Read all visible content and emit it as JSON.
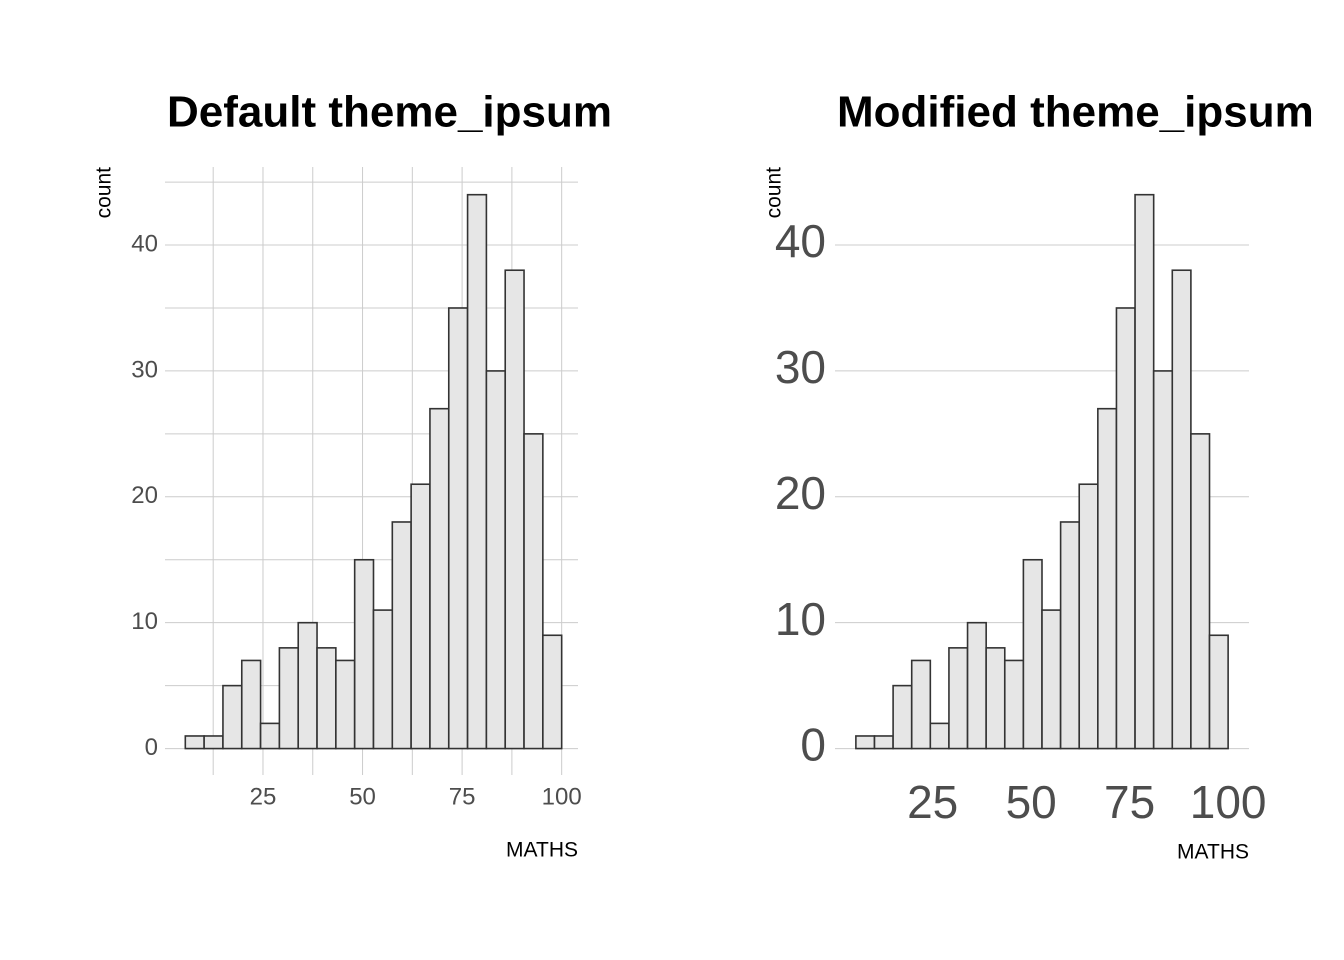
{
  "chart_data": [
    {
      "type": "histogram",
      "title": "Default theme_ipsum",
      "xlabel": "MATHS",
      "ylabel": "count",
      "bins": [
        5.5,
        10.225,
        14.95,
        19.675,
        24.4,
        29.125,
        33.85,
        38.575,
        43.3,
        48.025,
        52.75,
        57.475,
        62.2,
        66.925,
        71.65,
        76.375,
        81.1,
        85.825,
        90.55,
        95.275,
        100
      ],
      "values": [
        1,
        1,
        5,
        7,
        2,
        8,
        10,
        8,
        7,
        15,
        11,
        18,
        21,
        27,
        35,
        44,
        30,
        38,
        25,
        9
      ],
      "color": "#e6e6e6",
      "edgecolor": "#333333",
      "xlim": [
        0.4,
        104.1
      ],
      "ylim": [
        -2.1,
        46.2
      ],
      "xticks": [
        25,
        50,
        75,
        100
      ],
      "yticks": [
        0,
        10,
        20,
        30,
        40
      ],
      "minor_xticks": [
        12.5,
        37.5,
        62.5,
        87.5
      ],
      "minor_yticks": [
        5,
        15,
        25,
        35,
        45
      ],
      "x_grid": true,
      "y_grid": true,
      "minor_grid": true
    },
    {
      "type": "histogram",
      "title": "Modified theme_ipsum",
      "xlabel": "MATHS",
      "ylabel": "count",
      "bins": [
        5.5,
        10.225,
        14.95,
        19.675,
        24.4,
        29.125,
        33.85,
        38.575,
        43.3,
        48.025,
        52.75,
        57.475,
        62.2,
        66.925,
        71.65,
        76.375,
        81.1,
        85.825,
        90.55,
        95.275,
        100
      ],
      "values": [
        1,
        1,
        5,
        7,
        2,
        8,
        10,
        8,
        7,
        15,
        11,
        18,
        21,
        27,
        35,
        44,
        30,
        38,
        25,
        9
      ],
      "color": "#e6e6e6",
      "edgecolor": "#333333",
      "xlim": [
        0.2,
        105.3
      ],
      "ylim": [
        -2.1,
        46.2
      ],
      "xticks": [
        25,
        50,
        75,
        100
      ],
      "yticks": [
        0,
        10,
        20,
        30,
        40
      ],
      "x_grid": false,
      "y_grid": true,
      "minor_grid": false
    }
  ]
}
